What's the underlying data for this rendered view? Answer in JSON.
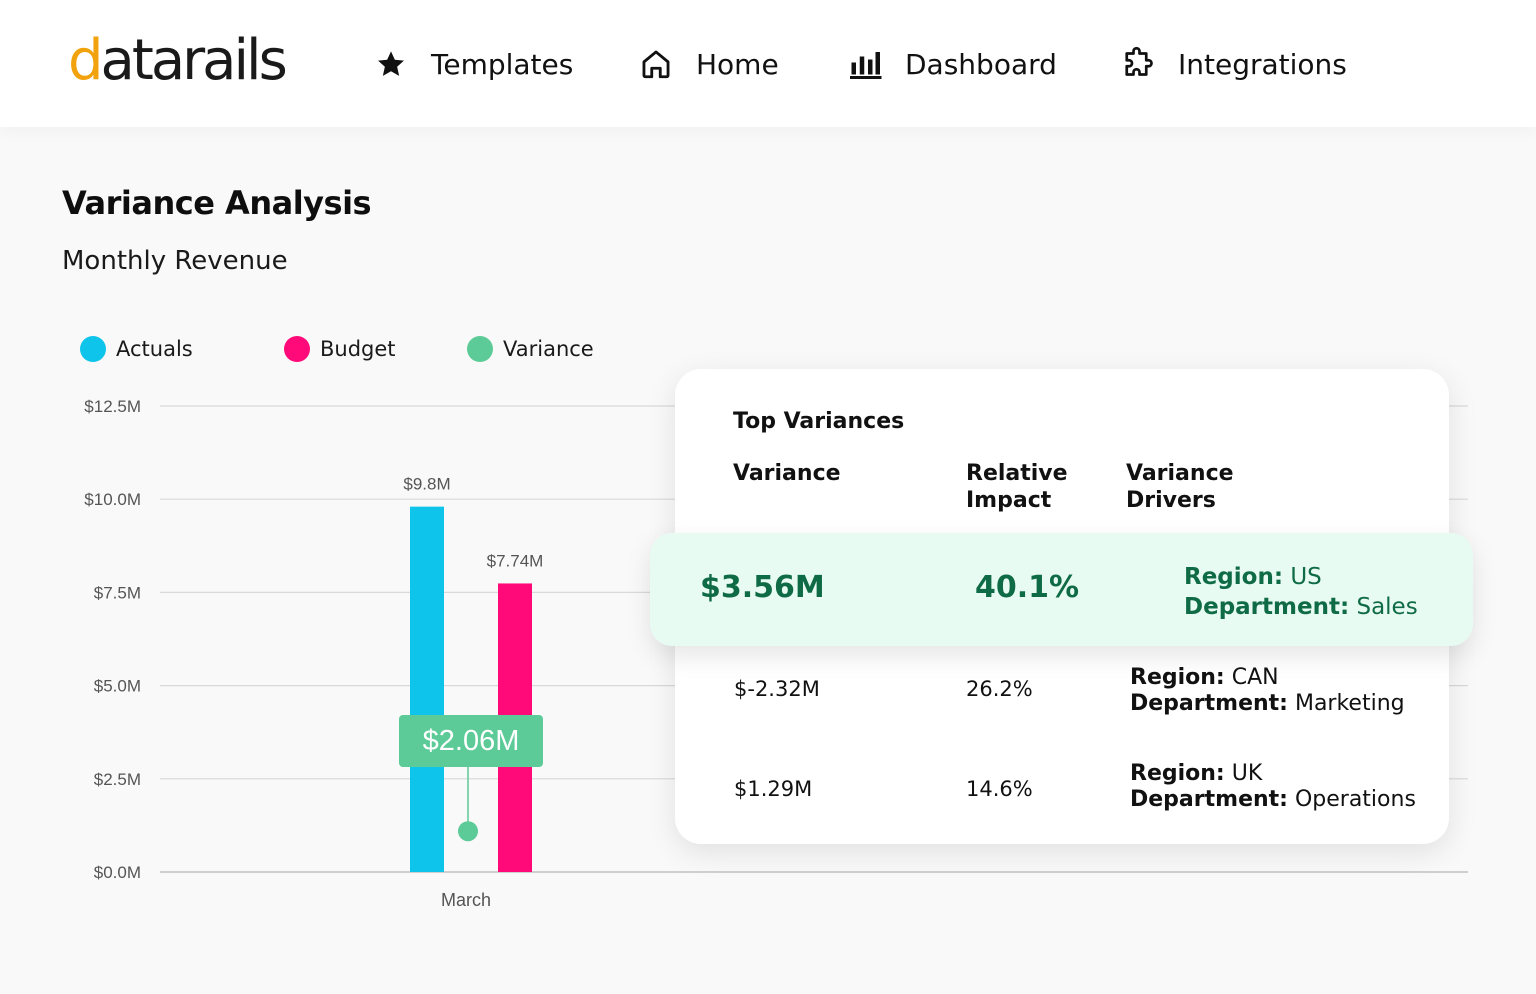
{
  "brand": {
    "logo_prefix": "d",
    "logo_rest": "atarails"
  },
  "nav": {
    "templates": {
      "label": "Templates",
      "icon": "star-icon"
    },
    "home": {
      "label": "Home",
      "icon": "home-icon"
    },
    "dashboard": {
      "label": "Dashboard",
      "icon": "bar-chart-icon"
    },
    "integrations": {
      "label": "Integrations",
      "icon": "puzzle-icon"
    }
  },
  "page": {
    "title": "Variance Analysis",
    "subtitle": "Monthly Revenue"
  },
  "legend": [
    {
      "label": "Actuals",
      "color": "#0fc4ea"
    },
    {
      "label": "Budget",
      "color": "#ff0a78"
    },
    {
      "label": "Variance",
      "color": "#5ccb98"
    }
  ],
  "chart_data": {
    "type": "bar",
    "categories": [
      "March"
    ],
    "series": [
      {
        "name": "Actuals",
        "values": [
          9.8
        ],
        "label": "$9.8M",
        "color": "#0fc4ea"
      },
      {
        "name": "Budget",
        "values": [
          7.74
        ],
        "label": "$7.74M",
        "color": "#ff0a78"
      }
    ],
    "variance": {
      "name": "Variance",
      "value": 2.06,
      "label": "$2.06M",
      "color": "#5ccb98"
    },
    "yticks": [
      0,
      2.5,
      5.0,
      7.5,
      10.0,
      12.5
    ],
    "ytick_labels": [
      "$0.0M",
      "$2.5M",
      "$5.0M",
      "$7.5M",
      "$10.0M",
      "$12.5M"
    ],
    "ylim": [
      0,
      12.5
    ],
    "grid": true,
    "legend_position": "top-left"
  },
  "top_variances": {
    "title": "Top Variances",
    "headers": {
      "variance": "Variance",
      "impact_1": "Relative",
      "impact_2": "Impact",
      "drivers_1": "Variance",
      "drivers_2": "Drivers"
    },
    "rows": [
      {
        "variance": "$3.56M",
        "impact": "40.1%",
        "region_label": "Region:",
        "region": " US",
        "dept_label": "Department:",
        "dept": " Sales"
      },
      {
        "variance": "$-2.32M",
        "impact": "26.2%",
        "region_label": "Region:",
        "region": " CAN",
        "dept_label": "Department:",
        "dept": " Marketing"
      },
      {
        "variance": "$1.29M",
        "impact": "14.6%",
        "region_label": "Region:",
        "region": " UK",
        "dept_label": "Department:",
        "dept": " Operations"
      }
    ]
  }
}
